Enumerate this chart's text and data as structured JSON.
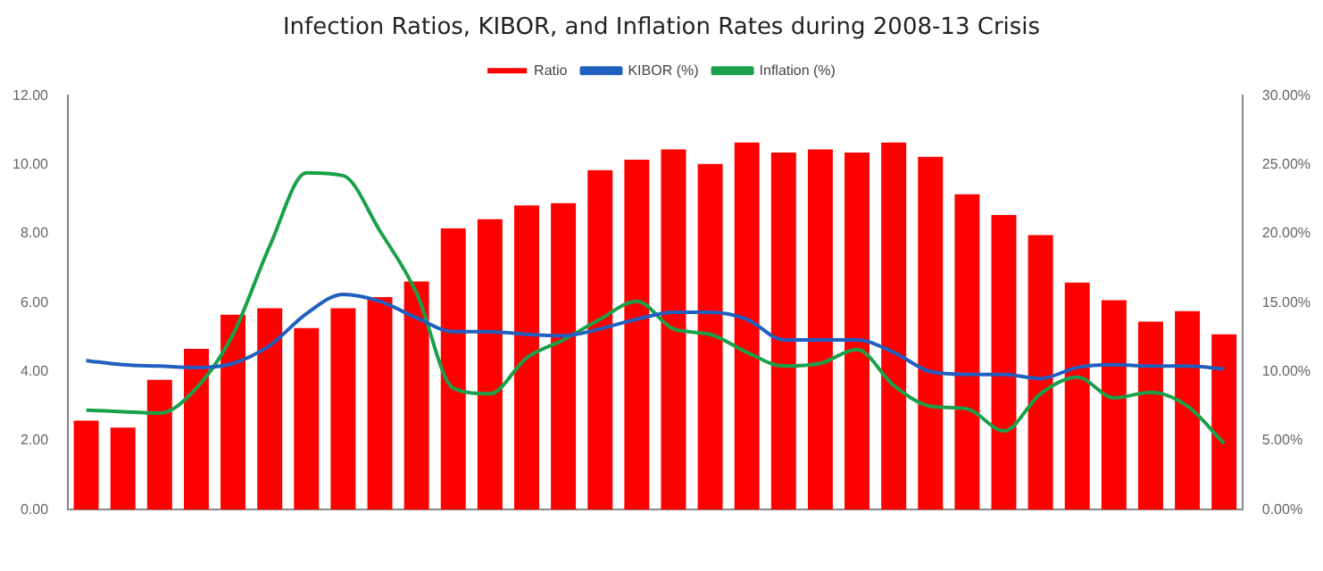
{
  "chart_data": {
    "type": "bar",
    "title": "Infection Ratios, KIBOR, and Inflation Rates during 2008-13 Crisis",
    "categories": [
      null,
      null,
      null,
      null,
      null,
      null,
      null,
      null,
      null,
      null,
      null,
      null,
      null,
      null,
      null,
      null,
      null,
      null,
      null,
      null,
      null,
      null,
      null,
      null,
      null,
      null,
      null,
      null,
      null,
      null,
      null,
      null
    ],
    "series": [
      {
        "name": "Ratio",
        "color": "#ff0000",
        "values": [
          2.58,
          2.38,
          3.76,
          4.66,
          5.65,
          5.84,
          5.26,
          5.84,
          6.16,
          6.61,
          8.15,
          8.42,
          8.82,
          8.88,
          9.84,
          10.14,
          10.44,
          10.02,
          10.64,
          10.35,
          10.44,
          10.35,
          10.64,
          10.23,
          9.14,
          8.54,
          7.96,
          6.58,
          6.07,
          5.45,
          5.75,
          5.08
        ]
      },
      {
        "name": "KIBOR (%)",
        "type": "line",
        "axis": "y2",
        "color": "#1f5fbf",
        "values": [
          10.8,
          10.5,
          10.4,
          10.3,
          10.6,
          11.9,
          14.2,
          15.6,
          15.1,
          13.9,
          12.9,
          12.9,
          12.7,
          12.6,
          13.1,
          13.8,
          14.3,
          14.3,
          13.8,
          12.3,
          12.3,
          12.3,
          11.4,
          10.0,
          9.8,
          9.8,
          9.5,
          10.3,
          10.5,
          10.4,
          10.4,
          10.2
        ]
      },
      {
        "name": "Inflation (%)",
        "type": "line",
        "axis": "y2",
        "color": "#1aa04a",
        "values": [
          7.2,
          7.1,
          7.0,
          8.8,
          12.7,
          19.1,
          24.4,
          24.2,
          20.2,
          15.7,
          8.8,
          8.4,
          11.0,
          12.3,
          13.8,
          15.1,
          13.1,
          12.7,
          11.4,
          10.4,
          10.6,
          11.6,
          9.0,
          7.5,
          7.3,
          5.7,
          8.4,
          9.6,
          8.1,
          8.5,
          7.5,
          4.8
        ]
      }
    ],
    "ylim": [
      0,
      12
    ],
    "yticks": [
      {
        "value": 0,
        "label": "0.00"
      },
      {
        "value": 2,
        "label": "2.00"
      },
      {
        "value": 4,
        "label": "4.00"
      },
      {
        "value": 6,
        "label": "6.00"
      },
      {
        "value": 8,
        "label": "8.00"
      },
      {
        "value": 10,
        "label": "10.00"
      },
      {
        "value": 12,
        "label": "12.00"
      }
    ],
    "y2lim": [
      0,
      30
    ],
    "y2ticks": [
      {
        "value": 0,
        "label": "0.00%"
      },
      {
        "value": 5,
        "label": "5.00%"
      },
      {
        "value": 10,
        "label": "10.00%"
      },
      {
        "value": 15,
        "label": "15.00%"
      },
      {
        "value": 20,
        "label": "20.00%"
      },
      {
        "value": 25,
        "label": "25.00%"
      },
      {
        "value": 30,
        "label": "30.00%"
      }
    ],
    "legend": "top",
    "grid": false,
    "marker": "none",
    "line_style": "solid"
  }
}
